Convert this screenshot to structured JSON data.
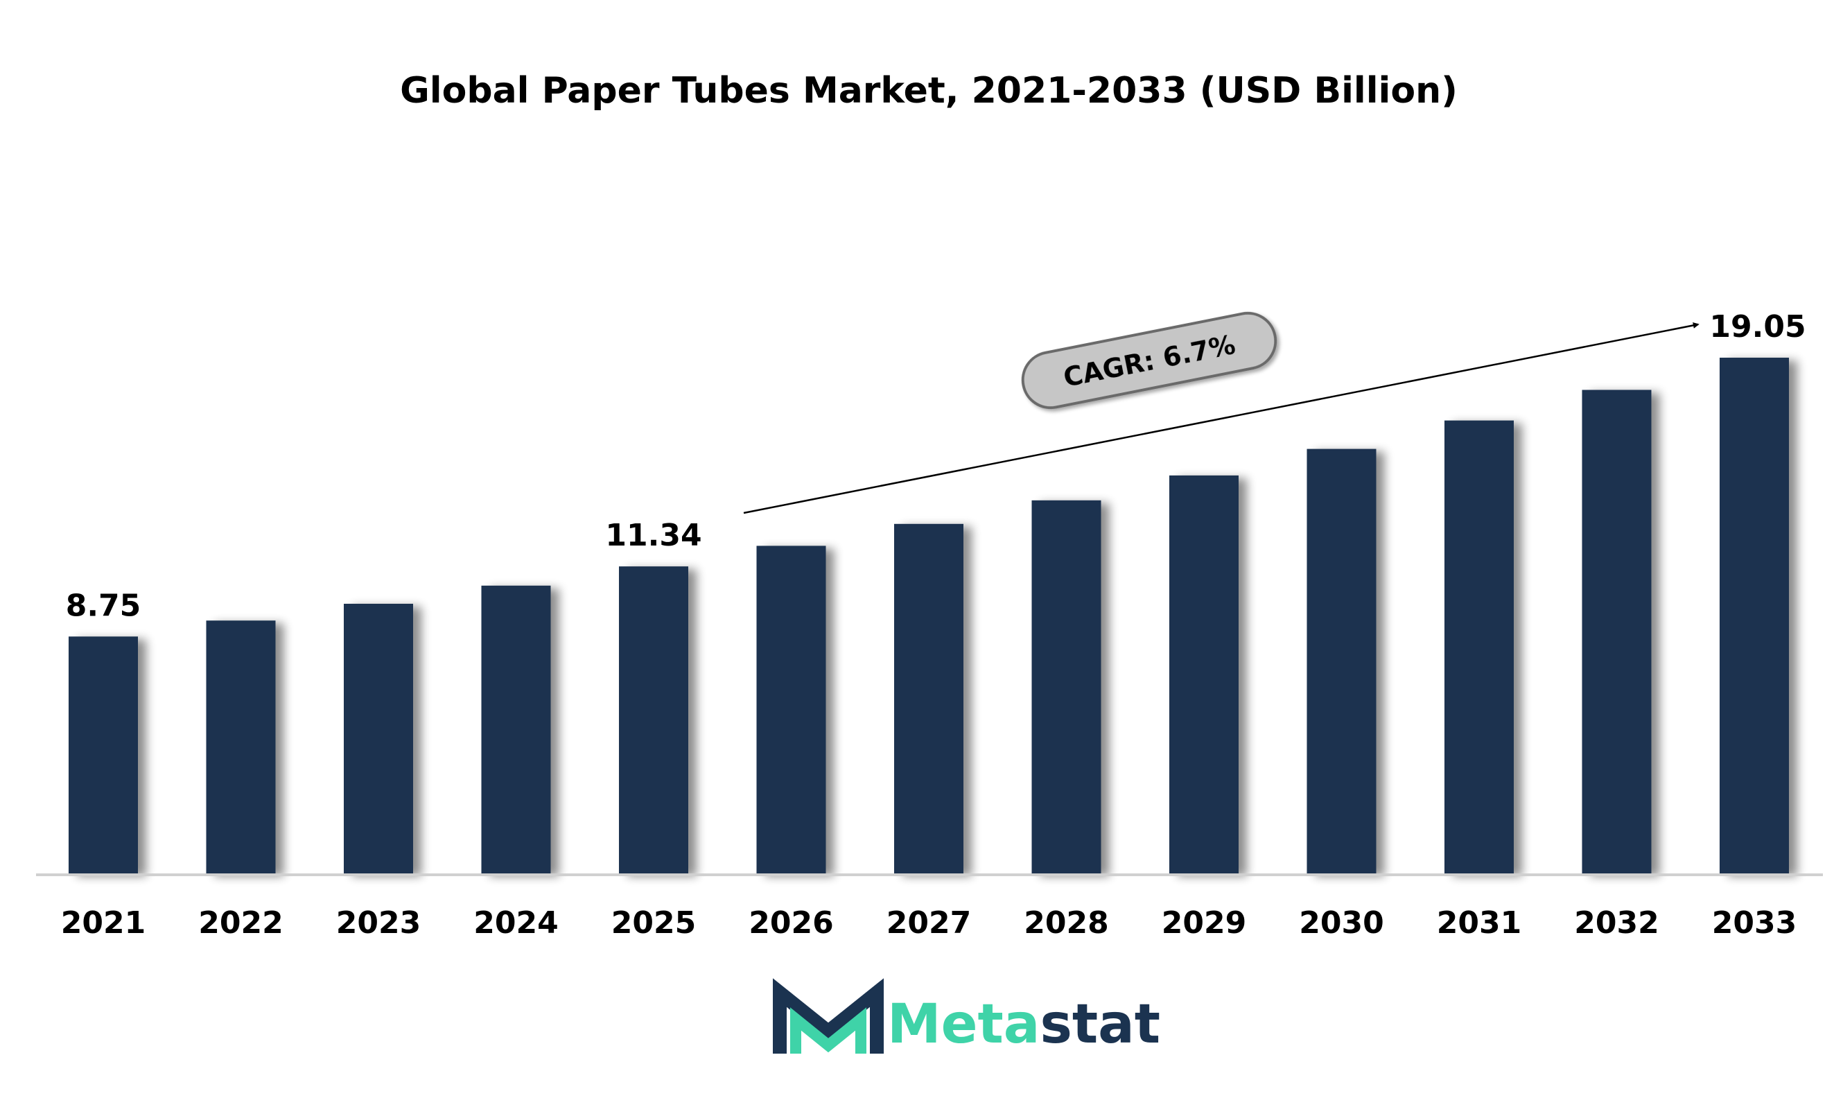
{
  "chart_data": {
    "type": "bar",
    "title": "Global Paper Tubes Market, 2021-2033 (USD Billion)",
    "categories": [
      "2021",
      "2022",
      "2023",
      "2024",
      "2025",
      "2026",
      "2027",
      "2028",
      "2029",
      "2030",
      "2031",
      "2032",
      "2033"
    ],
    "values": [
      8.75,
      9.34,
      9.96,
      10.63,
      11.34,
      12.1,
      12.91,
      13.78,
      14.7,
      15.68,
      16.73,
      17.86,
      19.05
    ],
    "data_labels": {
      "0": "8.75",
      "4": "11.34",
      "12": "19.05"
    },
    "annotation": "CAGR: 6.7%",
    "xlabel": "",
    "ylabel": "",
    "ylim": [
      0,
      19.05
    ],
    "grid": false,
    "legend": "none"
  },
  "branding": {
    "logo_part1": "Meta",
    "logo_part2": "stat"
  },
  "colors": {
    "bar": "#1b3350",
    "teal": "#3fd3a8",
    "navy": "#1b3350",
    "pill": "#c6c6c6"
  }
}
